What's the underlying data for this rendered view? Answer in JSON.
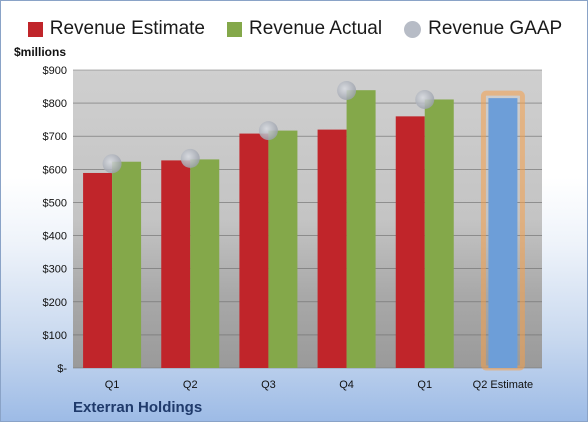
{
  "chart_data": {
    "type": "bar",
    "unit_label": "$millions",
    "company_label": "Exterran Holdings",
    "categories": [
      "Q1",
      "Q2",
      "Q3",
      "Q4",
      "Q1",
      "Q2 Estimate"
    ],
    "y_ticks": [
      "$-",
      "$100",
      "$200",
      "$300",
      "$400",
      "$500",
      "$600",
      "$700",
      "$800",
      "$900"
    ],
    "ylim": [
      0,
      900
    ],
    "grid": true,
    "legend_position": "top",
    "series": [
      {
        "name": "Revenue Estimate",
        "color": "#c0252a",
        "values": [
          589,
          627,
          708,
          720,
          760,
          null
        ]
      },
      {
        "name": "Revenue Actual",
        "color": "#84a84a",
        "values": [
          623,
          630,
          717,
          839,
          811,
          815
        ]
      },
      {
        "name": "Revenue GAAP",
        "color": "#b7bcc6",
        "values": [
          617,
          633,
          717,
          838,
          811,
          null
        ]
      }
    ],
    "estimate_bar": {
      "color": "#6d9ed8",
      "highlight_color": "#f5a04a"
    }
  }
}
